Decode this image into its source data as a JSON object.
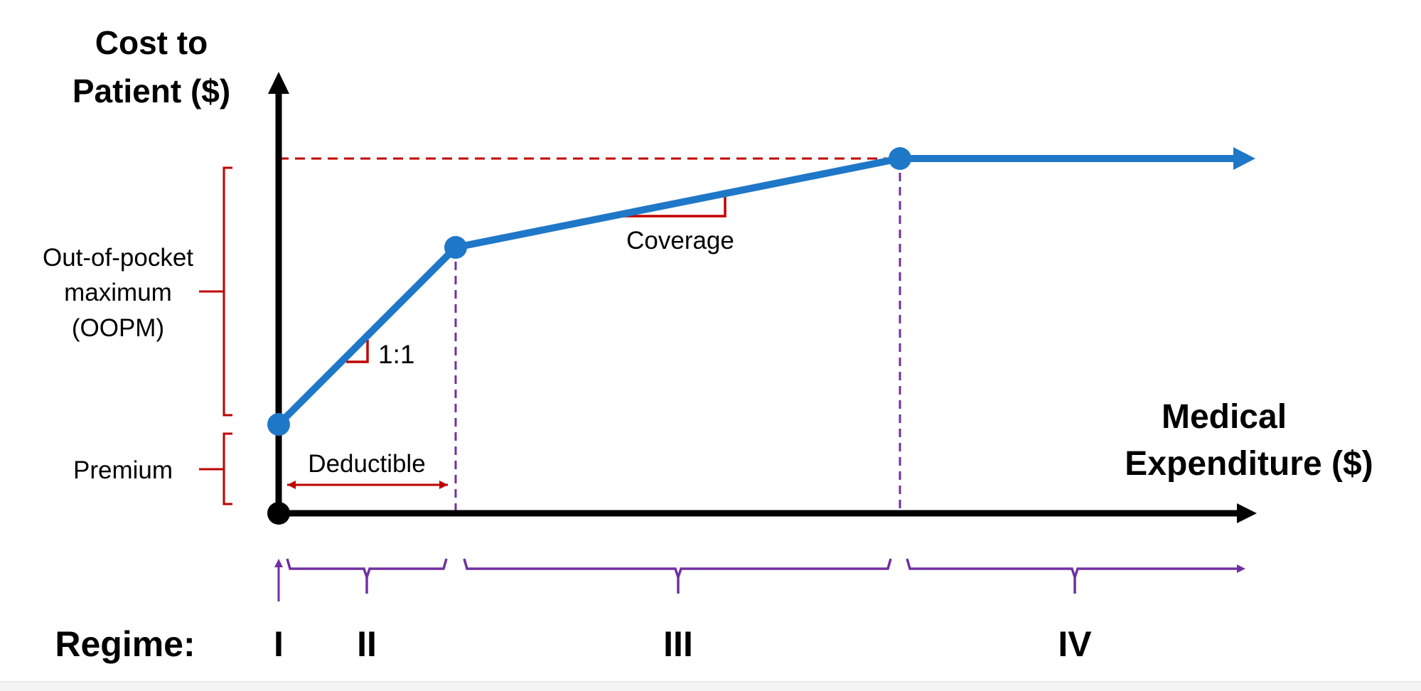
{
  "labels": {
    "y_axis": [
      "Cost to",
      "Patient ($)"
    ],
    "x_axis": [
      "Medical",
      "Expenditure ($)"
    ],
    "oopm": [
      "Out-of-pocket",
      "maximum",
      "(OOPM)"
    ],
    "premium": "Premium",
    "deductible": "Deductible",
    "slope_1to1": "1:1",
    "coverage": "Coverage",
    "regime_title": "Regime:",
    "regimes": [
      "I",
      "II",
      "III",
      "IV"
    ]
  },
  "colors": {
    "axis": "#000000",
    "cost_curve": "#1f77c8",
    "annotation_red": "#c00000",
    "regime_purple": "#7030a0",
    "oopm_dashed_red": "#c00000"
  }
}
